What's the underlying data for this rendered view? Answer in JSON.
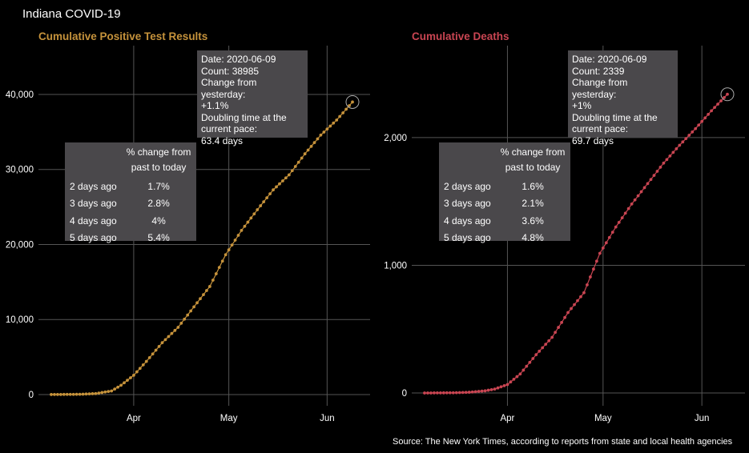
{
  "title": "Indiana COVID-19",
  "source": "Source: The New York Times, according to reports from state and local health agencies",
  "chart_data": [
    {
      "type": "line",
      "title": "Cumulative Positive Test Results",
      "title_color": "#c5923b",
      "line_color": "#c5923b",
      "xlabel": "",
      "ylabel": "",
      "x_start": "2020-03-06",
      "x_end": "2020-06-09",
      "x_ticks": [
        {
          "date": "2020-04-01",
          "label": "Apr"
        },
        {
          "date": "2020-05-01",
          "label": "May"
        },
        {
          "date": "2020-06-01",
          "label": "Jun"
        }
      ],
      "y_ticks": [
        0,
        10000,
        20000,
        30000,
        40000
      ],
      "y_tick_labels": [
        "0",
        "10,000",
        "20,000",
        "30,000",
        "40,000"
      ],
      "ylim": [
        -1500,
        46500
      ],
      "grid": true,
      "anchors": [
        [
          "2020-03-06",
          1
        ],
        [
          "2020-03-15",
          30
        ],
        [
          "2020-03-20",
          126
        ],
        [
          "2020-03-25",
          477
        ],
        [
          "2020-03-28",
          1232
        ],
        [
          "2020-04-01",
          2565
        ],
        [
          "2020-04-05",
          4411
        ],
        [
          "2020-04-10",
          6907
        ],
        [
          "2020-04-15",
          8955
        ],
        [
          "2020-04-20",
          11686
        ],
        [
          "2020-04-25",
          14399
        ],
        [
          "2020-04-30",
          18630
        ],
        [
          "2020-05-05",
          21870
        ],
        [
          "2020-05-10",
          24627
        ],
        [
          "2020-05-15",
          27280
        ],
        [
          "2020-05-20",
          29274
        ],
        [
          "2020-05-25",
          32078
        ],
        [
          "2020-05-30",
          34574
        ],
        [
          "2020-06-04",
          36578
        ],
        [
          "2020-06-09",
          38985
        ]
      ],
      "highlight": {
        "date": "2020-06-09",
        "value": 38985
      },
      "annotation": {
        "lines": [
          "Date: 2020-06-09",
          "Count: 38985",
          "Change from yesterday:",
          "+1.1%",
          "Doubling time at the",
          "current pace:",
          "63.4 days"
        ]
      },
      "change_table": {
        "header": "% change from\npast to today",
        "rows": [
          {
            "label": "2 days ago",
            "value": "1.7%"
          },
          {
            "label": "3 days ago",
            "value": "2.8%"
          },
          {
            "label": "4 days ago",
            "value": "4%"
          },
          {
            "label": "5 days ago",
            "value": "5.4%"
          }
        ]
      }
    },
    {
      "type": "line",
      "title": "Cumulative Deaths",
      "title_color": "#c94552",
      "line_color": "#c94552",
      "xlabel": "",
      "ylabel": "",
      "x_start": "2020-03-06",
      "x_end": "2020-06-09",
      "x_ticks": [
        {
          "date": "2020-04-01",
          "label": "Apr"
        },
        {
          "date": "2020-05-01",
          "label": "May"
        },
        {
          "date": "2020-06-01",
          "label": "Jun"
        }
      ],
      "y_ticks": [
        0,
        1000,
        2000
      ],
      "y_tick_labels": [
        "0",
        "1,000",
        "2,000"
      ],
      "ylim": [
        -100,
        2720
      ],
      "grid": true,
      "anchors": [
        [
          "2020-03-06",
          0
        ],
        [
          "2020-03-15",
          2
        ],
        [
          "2020-03-20",
          6
        ],
        [
          "2020-03-25",
          17
        ],
        [
          "2020-03-28",
          31
        ],
        [
          "2020-04-01",
          66
        ],
        [
          "2020-04-05",
          149
        ],
        [
          "2020-04-10",
          300
        ],
        [
          "2020-04-15",
          436
        ],
        [
          "2020-04-20",
          630
        ],
        [
          "2020-04-25",
          785
        ],
        [
          "2020-04-30",
          1094
        ],
        [
          "2020-05-05",
          1300
        ],
        [
          "2020-05-10",
          1480
        ],
        [
          "2020-05-15",
          1640
        ],
        [
          "2020-05-20",
          1800
        ],
        [
          "2020-05-25",
          1940
        ],
        [
          "2020-05-30",
          2070
        ],
        [
          "2020-06-04",
          2210
        ],
        [
          "2020-06-09",
          2339
        ]
      ],
      "highlight": {
        "date": "2020-06-09",
        "value": 2339
      },
      "annotation": {
        "lines": [
          "Date: 2020-06-09",
          "Count: 2339",
          "Change from yesterday:",
          "+1%",
          "Doubling time at the",
          "current pace:",
          "69.7 days"
        ]
      },
      "change_table": {
        "header": "% change from\npast to today",
        "rows": [
          {
            "label": "2 days ago",
            "value": "1.6%"
          },
          {
            "label": "3 days ago",
            "value": "2.1%"
          },
          {
            "label": "4 days ago",
            "value": "3.6%"
          },
          {
            "label": "5 days ago",
            "value": "4.8%"
          }
        ]
      }
    }
  ]
}
